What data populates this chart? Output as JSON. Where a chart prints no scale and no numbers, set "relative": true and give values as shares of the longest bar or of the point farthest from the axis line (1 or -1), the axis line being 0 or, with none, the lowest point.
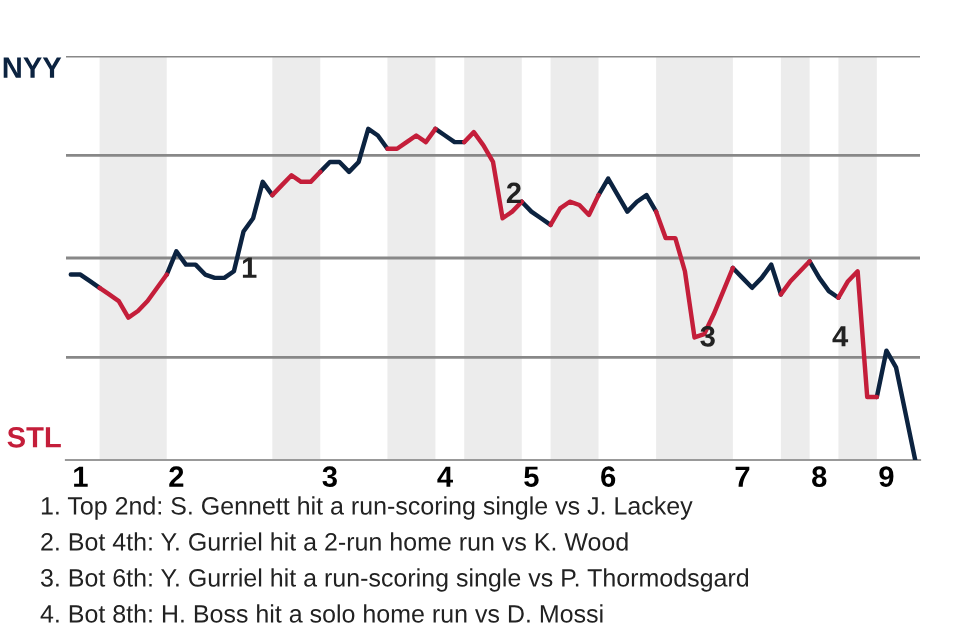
{
  "chart_data": {
    "type": "line",
    "relative": true,
    "grid": false,
    "legend": false,
    "marker": "none",
    "line_style": "solid",
    "categories": [
      null,
      "1",
      null,
      null,
      null,
      null,
      null,
      null,
      null,
      null,
      null,
      "2",
      null,
      null,
      null,
      null,
      null,
      null,
      null,
      null,
      null,
      null,
      null,
      null,
      null,
      null,
      null,
      "3",
      null,
      null,
      null,
      null,
      null,
      null,
      null,
      null,
      null,
      null,
      null,
      "4",
      null,
      null,
      null,
      null,
      null,
      null,
      null,
      null,
      "5",
      null,
      null,
      null,
      null,
      null,
      null,
      null,
      "6",
      null,
      null,
      null,
      null,
      null,
      null,
      null,
      null,
      null,
      null,
      null,
      null,
      null,
      "7",
      null,
      null,
      null,
      null,
      null,
      null,
      null,
      "8",
      null,
      null,
      null,
      null,
      null,
      null,
      "9",
      null,
      null,
      null
    ],
    "series": [
      {
        "color": "#0c2340",
        "values": [
          0.56,
          0.56,
          0.54,
          0.52,
          null,
          null,
          null,
          null,
          null,
          null,
          0.56,
          0.63,
          0.59,
          0.59,
          0.56,
          0.55,
          0.55,
          0.57,
          0.69,
          0.73,
          0.84,
          0.8,
          null,
          null,
          null,
          null,
          0.87,
          0.9,
          0.9,
          0.87,
          0.9,
          1.0,
          0.98,
          0.94,
          null,
          null,
          null,
          null,
          1.0,
          0.98,
          0.96,
          0.96,
          null,
          null,
          null,
          null,
          null,
          0.78,
          0.75,
          0.73,
          0.71,
          null,
          null,
          null,
          null,
          0.8,
          0.85,
          0.8,
          0.75,
          0.78,
          0.8,
          0.75,
          null,
          null,
          null,
          null,
          null,
          null,
          null,
          0.58,
          0.55,
          0.52,
          0.55,
          0.59,
          0.5,
          null,
          null,
          0.6,
          0.55,
          0.51,
          0.49,
          null,
          null,
          null,
          0.19,
          0.33,
          0.28,
          0.14,
          0
        ]
      },
      {
        "color": "#c41e3a",
        "values": [
          null,
          null,
          null,
          0.52,
          0.5,
          0.48,
          0.43,
          0.45,
          0.48,
          0.52,
          0.56,
          null,
          null,
          null,
          null,
          null,
          null,
          null,
          null,
          null,
          null,
          0.8,
          0.83,
          0.86,
          0.84,
          0.84,
          0.87,
          null,
          null,
          null,
          null,
          null,
          null,
          0.94,
          0.94,
          0.96,
          0.98,
          0.96,
          1.0,
          null,
          null,
          0.96,
          0.99,
          0.95,
          0.9,
          0.73,
          0.75,
          0.78,
          null,
          null,
          0.71,
          0.76,
          0.78,
          0.77,
          0.74,
          0.8,
          null,
          null,
          null,
          null,
          null,
          0.75,
          0.67,
          0.67,
          0.57,
          0.37,
          0.38,
          0.44,
          0.51,
          0.58,
          null,
          null,
          null,
          null,
          0.5,
          0.54,
          0.57,
          0.6,
          null,
          null,
          0.49,
          0.54,
          0.57,
          0.19,
          0.19,
          null,
          null,
          null,
          null
        ]
      }
    ],
    "ref_lines": [
      {
        "axis": "y",
        "value": 0.31,
        "color": "#888888"
      },
      {
        "axis": "y",
        "value": 0.61,
        "color": "#888888"
      },
      {
        "axis": "y",
        "value": 0.92,
        "color": "#888888"
      },
      {
        "axis": "y",
        "value": 1.22,
        "color": "#888888"
      }
    ],
    "annotations": [
      {
        "text": "NYY"
      },
      {
        "text": "STL"
      },
      {
        "text": "1"
      },
      {
        "text": "2"
      },
      {
        "text": "3"
      },
      {
        "text": "4"
      },
      "1. Top 2nd: S. Gennett hit a run-scoring single vs J. Lackey",
      "2. Bot 4th: Y. Gurriel hit a 2-run home run vs K. Wood",
      "3. Bot 6th: Y. Gurriel hit a run-scoring single vs P. Thormodsgard",
      "4. Bot 8th: H. Boss hit a solo home run vs D. Mossi"
    ]
  }
}
